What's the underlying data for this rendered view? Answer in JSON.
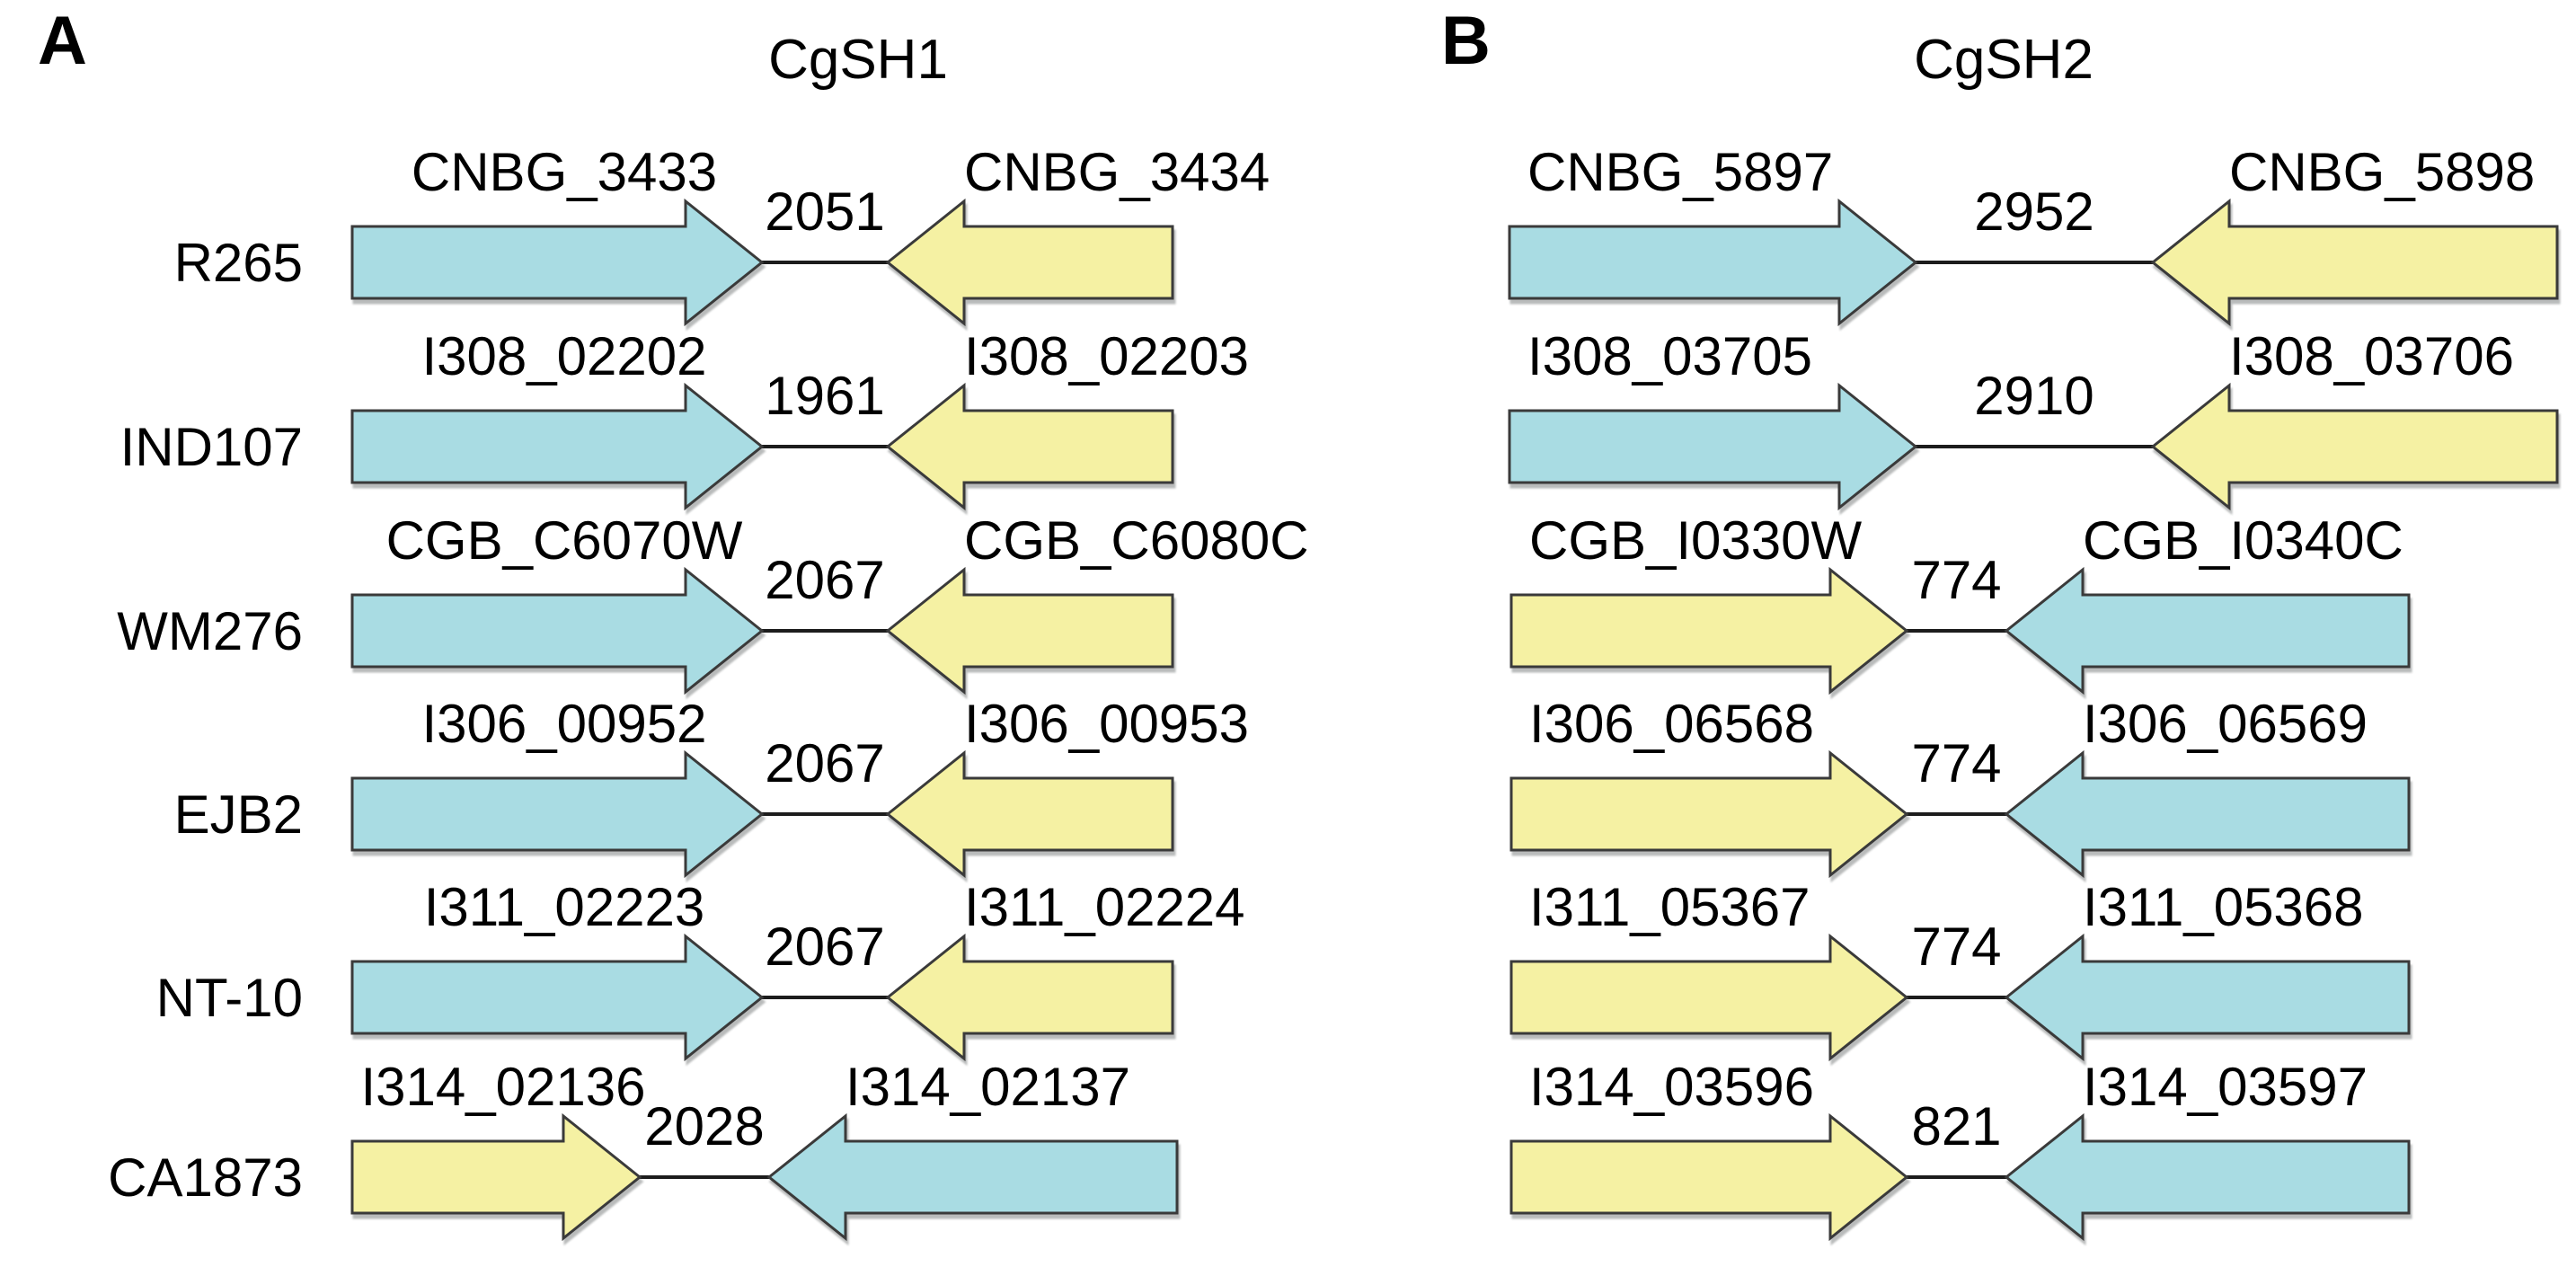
{
  "figure": {
    "description": "Gene synteny diagram of two convergent gene pairs (CgSH loci) across six strains",
    "arrow_orientation": "convergent",
    "colors": {
      "cyan": "#a9dce3",
      "yellow": "#f5f1a3",
      "outline": "#3a3a3a",
      "line": "#1c1c1c",
      "text": "#000000",
      "background": "#ffffff"
    },
    "panels": [
      {
        "letter": "A",
        "title": "CgSH1",
        "rows": [
          {
            "strain": "R265",
            "left_gene": "CNBG_3433",
            "distance": "2051",
            "right_gene": "CNBG_3434",
            "left_color": "cyan",
            "right_color": "yellow"
          },
          {
            "strain": "IND107",
            "left_gene": "I308_02202",
            "distance": "1961",
            "right_gene": "I308_02203",
            "left_color": "cyan",
            "right_color": "yellow"
          },
          {
            "strain": "WM276",
            "left_gene": "CGB_C6070W",
            "distance": "2067",
            "right_gene": "CGB_C6080C",
            "left_color": "cyan",
            "right_color": "yellow"
          },
          {
            "strain": "EJB2",
            "left_gene": "I306_00952",
            "distance": "2067",
            "right_gene": "I306_00953",
            "left_color": "cyan",
            "right_color": "yellow"
          },
          {
            "strain": "NT-10",
            "left_gene": "I311_02223",
            "distance": "2067",
            "right_gene": "I311_02224",
            "left_color": "cyan",
            "right_color": "yellow"
          },
          {
            "strain": "CA1873",
            "left_gene": "I314_02136",
            "distance": "2028",
            "right_gene": "I314_02137",
            "left_color": "yellow",
            "right_color": "cyan"
          }
        ]
      },
      {
        "letter": "B",
        "title": "CgSH2",
        "rows": [
          {
            "left_gene": "CNBG_5897",
            "distance": "2952",
            "right_gene": "CNBG_5898",
            "left_color": "cyan",
            "right_color": "yellow"
          },
          {
            "left_gene": "I308_03705",
            "distance": "2910",
            "right_gene": "I308_03706",
            "left_color": "cyan",
            "right_color": "yellow"
          },
          {
            "left_gene": "CGB_I0330W",
            "distance": "774",
            "right_gene": "CGB_I0340C",
            "left_color": "yellow",
            "right_color": "cyan"
          },
          {
            "left_gene": "I306_06568",
            "distance": "774",
            "right_gene": "I306_06569",
            "left_color": "yellow",
            "right_color": "cyan"
          },
          {
            "left_gene": "I311_05367",
            "distance": "774",
            "right_gene": "I311_05368",
            "left_color": "yellow",
            "right_color": "cyan"
          },
          {
            "left_gene": "I314_03596",
            "distance": "821",
            "right_gene": "I314_03597",
            "left_color": "yellow",
            "right_color": "cyan"
          }
        ]
      }
    ]
  }
}
